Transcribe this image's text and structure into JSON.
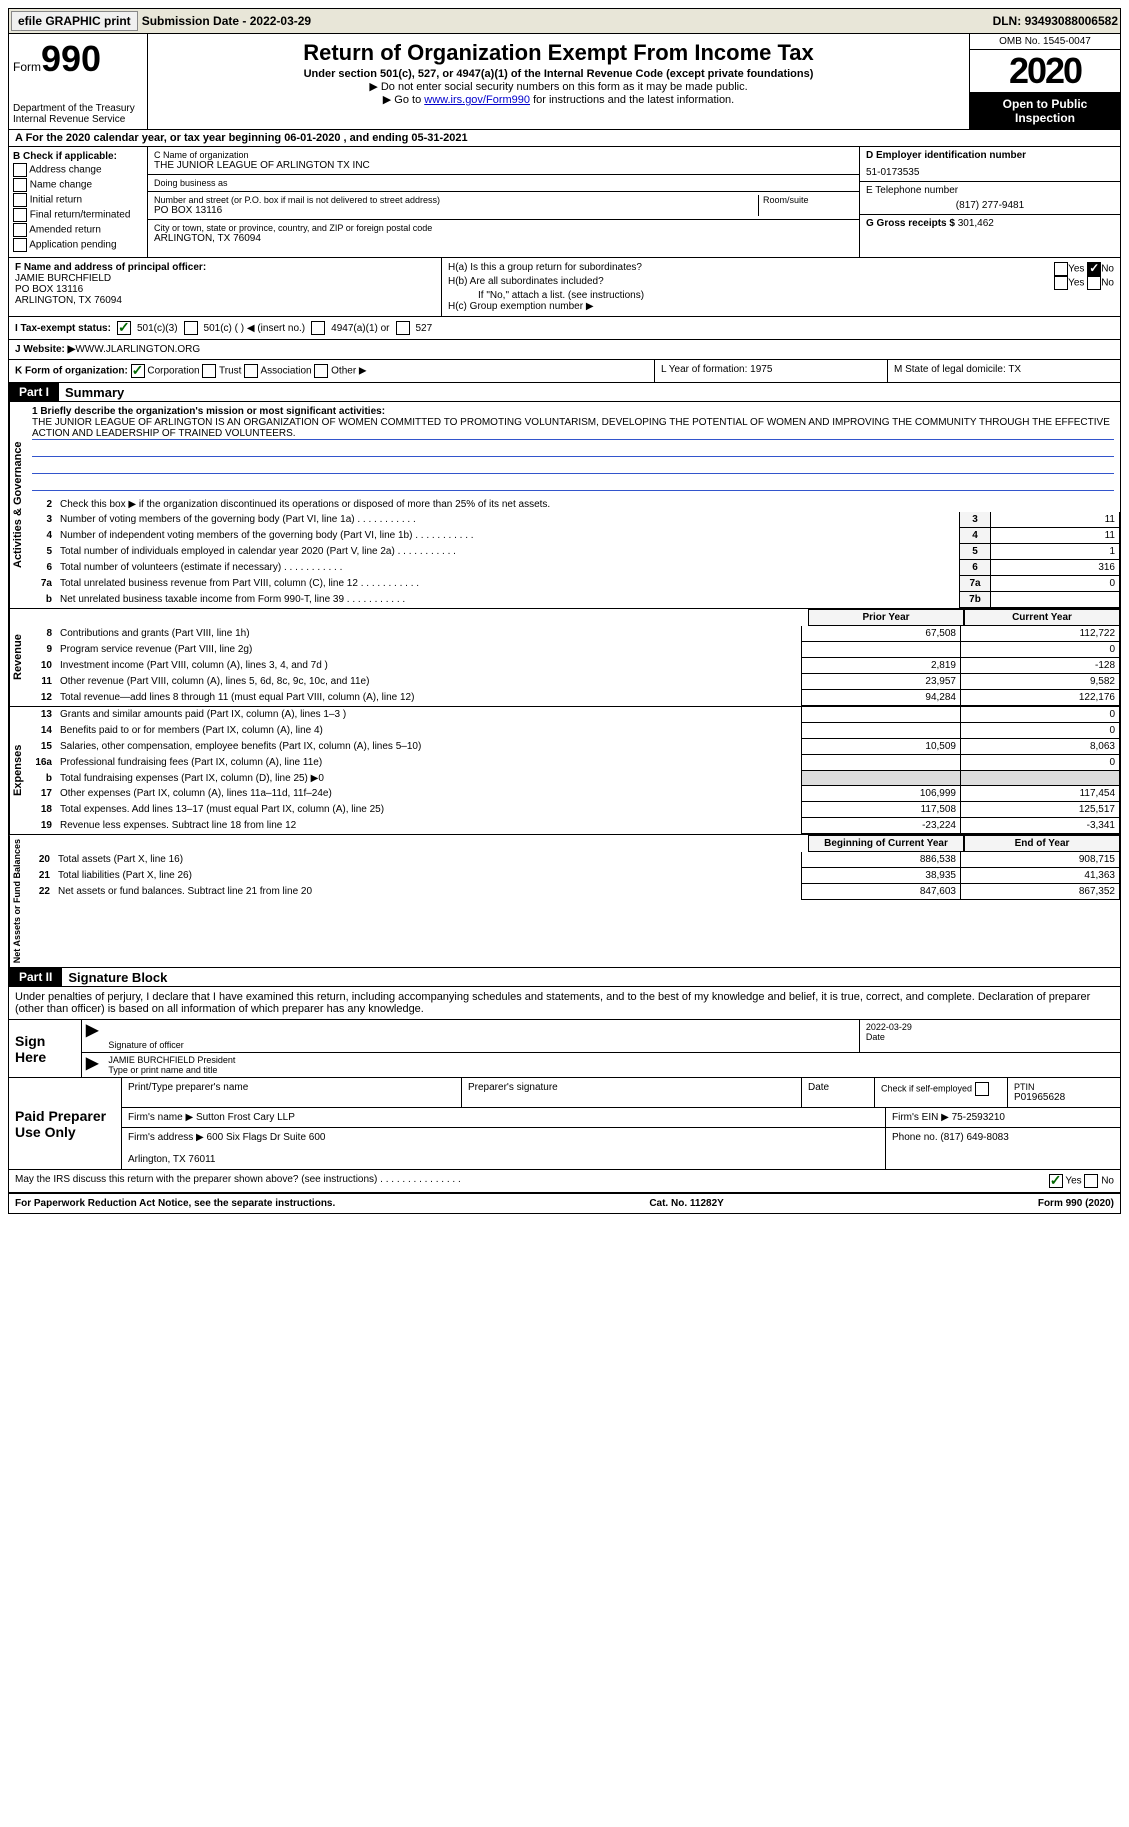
{
  "top_bar": {
    "efile_btn": "efile GRAPHIC print",
    "sub_date_label": "Submission Date - ",
    "sub_date": "2022-03-29",
    "dln_label": "DLN: ",
    "dln": "93493088006582"
  },
  "header": {
    "form_label": "Form",
    "form_no": "990",
    "dept": "Department of the Treasury\nInternal Revenue Service",
    "title": "Return of Organization Exempt From Income Tax",
    "sub1": "Under section 501(c), 527, or 4947(a)(1) of the Internal Revenue Code (except private foundations)",
    "note1": "▶ Do not enter social security numbers on this form as it may be made public.",
    "note2_pre": "▶ Go to ",
    "note2_link": "www.irs.gov/Form990",
    "note2_post": " for instructions and the latest information.",
    "omb": "OMB No. 1545-0047",
    "year": "2020",
    "open_pub": "Open to Public Inspection"
  },
  "tax_year": "A For the 2020 calendar year, or tax year beginning 06-01-2020    , and ending 05-31-2021",
  "sectionB": {
    "hdr": "B Check if applicable:",
    "opts": [
      "Address change",
      "Name change",
      "Initial return",
      "Final return/terminated",
      "Amended return",
      "Application pending"
    ]
  },
  "sectionC": {
    "name_lbl": "C Name of organization",
    "name": "THE JUNIOR LEAGUE OF ARLINGTON TX INC",
    "dba_lbl": "Doing business as",
    "dba": "",
    "addr_lbl": "Number and street (or P.O. box if mail is not delivered to street address)",
    "room_lbl": "Room/suite",
    "addr": "PO BOX 13116",
    "city_lbl": "City or town, state or province, country, and ZIP or foreign postal code",
    "city": "ARLINGTON, TX  76094"
  },
  "sectionD": {
    "ein_lbl": "D Employer identification number",
    "ein": "51-0173535",
    "tel_lbl": "E Telephone number",
    "tel": "(817) 277-9481",
    "gross_lbl": "G Gross receipts $ ",
    "gross": "301,462"
  },
  "sectionF": {
    "lbl": "F Name and address of principal officer:",
    "name": "JAMIE BURCHFIELD",
    "addr1": "PO BOX 13116",
    "addr2": "ARLINGTON, TX  76094"
  },
  "sectionH": {
    "ha": "H(a)  Is this a group return for subordinates?",
    "hb": "H(b)  Are all subordinates included?",
    "hb_note": "If \"No,\" attach a list. (see instructions)",
    "hc": "H(c)  Group exemption number ▶",
    "yes": "Yes",
    "no": "No"
  },
  "sectionI": {
    "lbl": "I    Tax-exempt status:",
    "o1": "501(c)(3)",
    "o2": "501(c) (   ) ◀ (insert no.)",
    "o3": "4947(a)(1) or",
    "o4": "527"
  },
  "sectionJ": {
    "lbl": "J   Website: ▶  ",
    "val": "WWW.JLARLINGTON.ORG"
  },
  "sectionK": {
    "lbl": "K Form of organization:",
    "opts": [
      "Corporation",
      "Trust",
      "Association",
      "Other ▶"
    ],
    "L": "L Year of formation: 1975",
    "M": "M State of legal domicile: TX"
  },
  "part1": {
    "hdr": "Part I",
    "title": "Summary",
    "q1_lbl": "1  Briefly describe the organization's mission or most significant activities:",
    "q1_txt": "THE JUNIOR LEAGUE OF ARLINGTON IS AN ORGANIZATION OF WOMEN COMMITTED TO PROMOTING VOLUNTARISM, DEVELOPING THE POTENTIAL OF WOMEN AND IMPROVING THE COMMUNITY THROUGH THE EFFECTIVE ACTION AND LEADERSHIP OF TRAINED VOLUNTEERS.",
    "q2": "Check this box ▶      if the organization discontinued its operations or disposed of more than 25% of its net assets.",
    "vert_gov": "Activities & Governance",
    "vert_rev": "Revenue",
    "vert_exp": "Expenses",
    "vert_net": "Net Assets or Fund Balances",
    "lines_gov": [
      {
        "n": "3",
        "t": "Number of voting members of the governing body (Part VI, line 1a)",
        "b": "3",
        "v": "11"
      },
      {
        "n": "4",
        "t": "Number of independent voting members of the governing body (Part VI, line 1b)",
        "b": "4",
        "v": "11"
      },
      {
        "n": "5",
        "t": "Total number of individuals employed in calendar year 2020 (Part V, line 2a)",
        "b": "5",
        "v": "1"
      },
      {
        "n": "6",
        "t": "Total number of volunteers (estimate if necessary)",
        "b": "6",
        "v": "316"
      },
      {
        "n": "7a",
        "t": "Total unrelated business revenue from Part VIII, column (C), line 12",
        "b": "7a",
        "v": "0"
      },
      {
        "n": "b",
        "t": "Net unrelated business taxable income from Form 990-T, line 39",
        "b": "7b",
        "v": ""
      }
    ],
    "col_hdrs": {
      "prior": "Prior Year",
      "curr": "Current Year",
      "beg": "Beginning of Current Year",
      "end": "End of Year"
    },
    "rev": [
      {
        "n": "8",
        "t": "Contributions and grants (Part VIII, line 1h)",
        "p": "67,508",
        "c": "112,722"
      },
      {
        "n": "9",
        "t": "Program service revenue (Part VIII, line 2g)",
        "p": "",
        "c": "0"
      },
      {
        "n": "10",
        "t": "Investment income (Part VIII, column (A), lines 3, 4, and 7d )",
        "p": "2,819",
        "c": "-128"
      },
      {
        "n": "11",
        "t": "Other revenue (Part VIII, column (A), lines 5, 6d, 8c, 9c, 10c, and 11e)",
        "p": "23,957",
        "c": "9,582"
      },
      {
        "n": "12",
        "t": "Total revenue—add lines 8 through 11 (must equal Part VIII, column (A), line 12)",
        "p": "94,284",
        "c": "122,176"
      }
    ],
    "exp": [
      {
        "n": "13",
        "t": "Grants and similar amounts paid (Part IX, column (A), lines 1–3 )",
        "p": "",
        "c": "0"
      },
      {
        "n": "14",
        "t": "Benefits paid to or for members (Part IX, column (A), line 4)",
        "p": "",
        "c": "0"
      },
      {
        "n": "15",
        "t": "Salaries, other compensation, employee benefits (Part IX, column (A), lines 5–10)",
        "p": "10,509",
        "c": "8,063"
      },
      {
        "n": "16a",
        "t": "Professional fundraising fees (Part IX, column (A), line 11e)",
        "p": "",
        "c": "0"
      },
      {
        "n": "b",
        "t": "Total fundraising expenses (Part IX, column (D), line 25) ▶0",
        "p": "SHADE",
        "c": "SHADE"
      },
      {
        "n": "17",
        "t": "Other expenses (Part IX, column (A), lines 11a–11d, 11f–24e)",
        "p": "106,999",
        "c": "117,454"
      },
      {
        "n": "18",
        "t": "Total expenses. Add lines 13–17 (must equal Part IX, column (A), line 25)",
        "p": "117,508",
        "c": "125,517"
      },
      {
        "n": "19",
        "t": "Revenue less expenses. Subtract line 18 from line 12",
        "p": "-23,224",
        "c": "-3,341"
      }
    ],
    "net": [
      {
        "n": "20",
        "t": "Total assets (Part X, line 16)",
        "p": "886,538",
        "c": "908,715"
      },
      {
        "n": "21",
        "t": "Total liabilities (Part X, line 26)",
        "p": "38,935",
        "c": "41,363"
      },
      {
        "n": "22",
        "t": "Net assets or fund balances. Subtract line 21 from line 20",
        "p": "847,603",
        "c": "867,352"
      }
    ]
  },
  "part2": {
    "hdr": "Part II",
    "title": "Signature Block",
    "note": "Under penalties of perjury, I declare that I have examined this return, including accompanying schedules and statements, and to the best of my knowledge and belief, it is true, correct, and complete. Declaration of preparer (other than officer) is based on all information of which preparer has any knowledge.",
    "sign_here": "Sign Here",
    "sig_officer_lbl": "Signature of officer",
    "sig_date": "2022-03-29",
    "sig_date_lbl": "Date",
    "sig_name": "JAMIE BURCHFIELD President",
    "sig_name_lbl": "Type or print name and title",
    "paid": {
      "lbl": "Paid Preparer Use Only",
      "h1": "Print/Type preparer's name",
      "h2": "Preparer's signature",
      "h3": "Date",
      "h4": "Check      if self-employed",
      "h5_lbl": "PTIN",
      "h5": "P01965628",
      "firm_lbl": "Firm's name   ▶",
      "firm": "Sutton Frost Cary LLP",
      "ein_lbl": "Firm's EIN ▶",
      "ein": "75-2593210",
      "addr_lbl": "Firm's address ▶",
      "addr": "600 Six Flags Dr Suite 600\n\nArlington, TX  76011",
      "phone_lbl": "Phone no. ",
      "phone": "(817) 649-8083"
    },
    "may_irs": "May the IRS discuss this return with the preparer shown above? (see instructions)",
    "yes": "Yes",
    "no": "No"
  },
  "footer": {
    "left": "For Paperwork Reduction Act Notice, see the separate instructions.",
    "mid": "Cat. No. 11282Y",
    "right": "Form 990 (2020)"
  }
}
